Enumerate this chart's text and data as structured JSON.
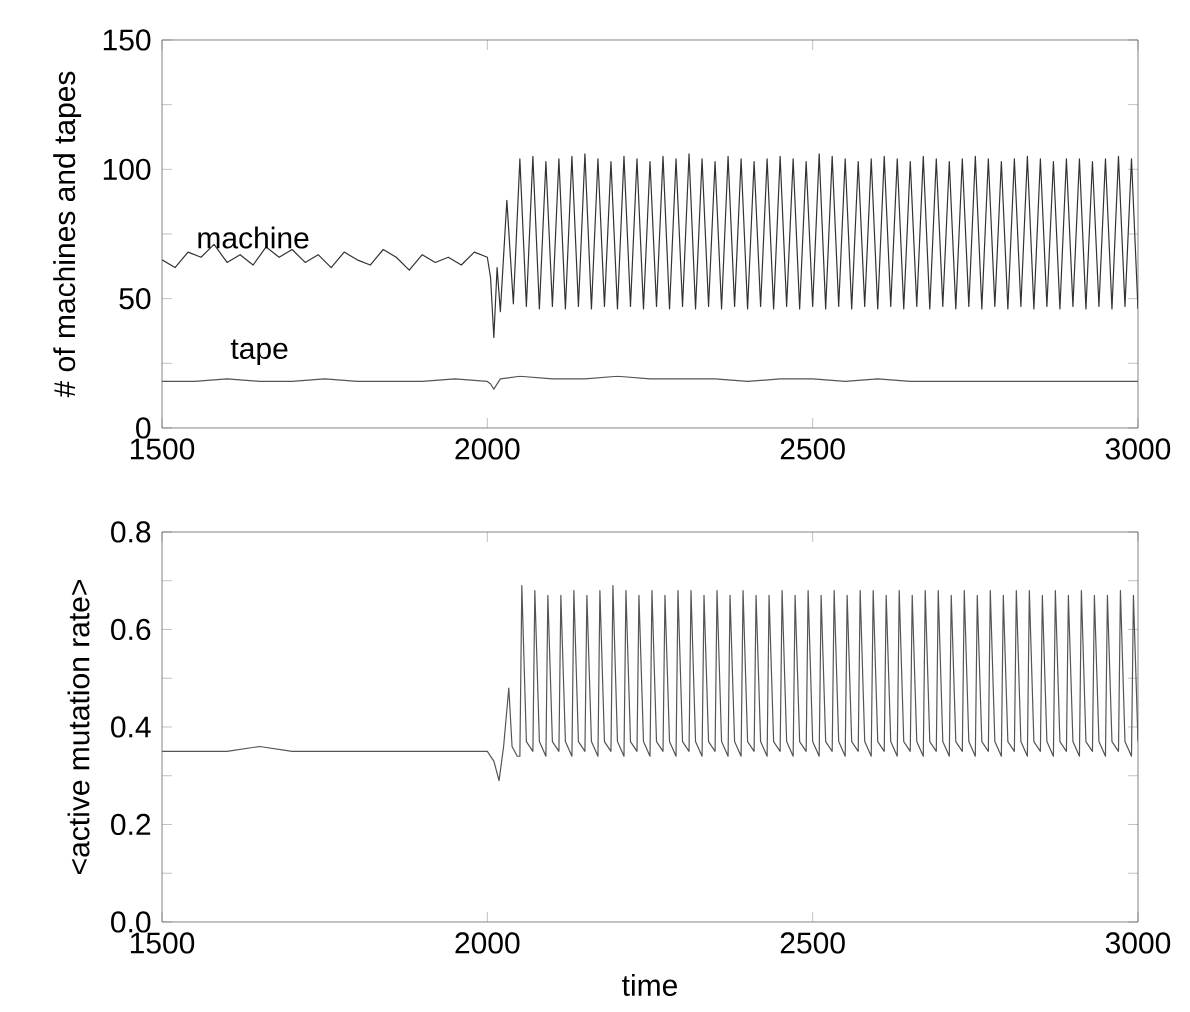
{
  "chart_data": [
    {
      "type": "line",
      "ylabel": "# of machines and tapes",
      "xlim": [
        1500,
        3000
      ],
      "xticks": [
        1500,
        2000,
        2500,
        3000
      ],
      "ylim": [
        0,
        150
      ],
      "yticks": [
        0,
        {
          "value": 25,
          "label": null
        },
        50,
        {
          "value": 75,
          "label": null
        },
        100,
        {
          "value": 125,
          "label": null
        },
        150
      ],
      "series": [
        {
          "name": "machine",
          "color": "#333333",
          "x": [
            1500,
            1520,
            1540,
            1560,
            1580,
            1600,
            1620,
            1640,
            1660,
            1680,
            1700,
            1720,
            1740,
            1760,
            1780,
            1800,
            1820,
            1840,
            1860,
            1880,
            1900,
            1920,
            1940,
            1960,
            1980,
            2000,
            2005,
            2010,
            2015,
            2020,
            2030,
            2040,
            2050,
            2060,
            2070,
            2080,
            2090,
            2100,
            2110,
            2120,
            2130,
            2140,
            2150,
            2160,
            2170,
            2180,
            2190,
            2200,
            2210,
            2220,
            2230,
            2240,
            2250,
            2260,
            2270,
            2280,
            2290,
            2300,
            2310,
            2320,
            2330,
            2340,
            2350,
            2360,
            2370,
            2380,
            2390,
            2400,
            2410,
            2420,
            2430,
            2440,
            2450,
            2460,
            2470,
            2480,
            2490,
            2500,
            2510,
            2520,
            2530,
            2540,
            2550,
            2560,
            2570,
            2580,
            2590,
            2600,
            2610,
            2620,
            2630,
            2640,
            2650,
            2660,
            2670,
            2680,
            2690,
            2700,
            2710,
            2720,
            2730,
            2740,
            2750,
            2760,
            2770,
            2780,
            2790,
            2800,
            2810,
            2820,
            2830,
            2840,
            2850,
            2860,
            2870,
            2880,
            2890,
            2900,
            2910,
            2920,
            2930,
            2940,
            2950,
            2960,
            2970,
            2980,
            2990,
            3000
          ],
          "values": [
            65,
            62,
            68,
            66,
            71,
            64,
            67,
            63,
            70,
            66,
            69,
            64,
            67,
            62,
            68,
            65,
            63,
            69,
            66,
            61,
            67,
            64,
            66,
            63,
            68,
            66,
            58,
            35,
            62,
            45,
            88,
            48,
            104,
            47,
            105,
            46,
            103,
            47,
            104,
            46,
            105,
            47,
            106,
            46,
            104,
            47,
            103,
            46,
            105,
            47,
            104,
            46,
            103,
            47,
            105,
            46,
            104,
            47,
            106,
            46,
            104,
            47,
            103,
            46,
            105,
            47,
            104,
            46,
            103,
            47,
            104,
            46,
            105,
            47,
            104,
            46,
            103,
            47,
            106,
            46,
            105,
            47,
            104,
            46,
            103,
            47,
            104,
            46,
            105,
            47,
            104,
            46,
            103,
            47,
            105,
            46,
            104,
            47,
            103,
            46,
            104,
            47,
            105,
            46,
            104,
            47,
            103,
            46,
            104,
            47,
            105,
            46,
            104,
            47,
            103,
            46,
            104,
            47,
            104,
            46,
            103,
            47,
            104,
            46,
            105,
            47,
            104,
            46
          ]
        },
        {
          "name": "tape",
          "color": "#555555",
          "x": [
            1500,
            1550,
            1600,
            1650,
            1700,
            1750,
            1800,
            1850,
            1900,
            1950,
            2000,
            2005,
            2010,
            2020,
            2050,
            2100,
            2150,
            2200,
            2250,
            2300,
            2350,
            2400,
            2450,
            2500,
            2550,
            2600,
            2650,
            2700,
            2750,
            2800,
            2850,
            2900,
            2950,
            3000
          ],
          "values": [
            18,
            18,
            19,
            18,
            18,
            19,
            18,
            18,
            18,
            19,
            18,
            17,
            15,
            19,
            20,
            19,
            19,
            20,
            19,
            19,
            19,
            18,
            19,
            19,
            18,
            19,
            18,
            18,
            18,
            18,
            18,
            18,
            18,
            18
          ]
        }
      ]
    },
    {
      "type": "line",
      "xlabel": "time",
      "ylabel": "<active mutation rate>",
      "xlim": [
        1500,
        3000
      ],
      "xticks": [
        1500,
        2000,
        2500,
        3000
      ],
      "ylim": [
        0,
        0.8
      ],
      "yticks": [
        {
          "value": 0,
          "label": "0.0"
        },
        {
          "value": 0.1,
          "label": null
        },
        0.2,
        {
          "value": 0.3,
          "label": null
        },
        0.4,
        {
          "value": 0.5,
          "label": null
        },
        0.6,
        {
          "value": 0.7,
          "label": null
        },
        0.8
      ],
      "series": [
        {
          "color": "#555555",
          "x": [
            1500,
            1550,
            1600,
            1650,
            1700,
            1750,
            1800,
            1850,
            1900,
            1950,
            2000,
            2010,
            2018,
            2025,
            2033,
            2038,
            2046,
            2050,
            2053,
            2060,
            2070,
            2073,
            2080,
            2090,
            2093,
            2100,
            2110,
            2113,
            2120,
            2130,
            2133,
            2140,
            2150,
            2153,
            2160,
            2170,
            2173,
            2180,
            2190,
            2193,
            2200,
            2210,
            2213,
            2220,
            2230,
            2233,
            2240,
            2250,
            2253,
            2260,
            2270,
            2273,
            2280,
            2290,
            2293,
            2300,
            2310,
            2313,
            2320,
            2330,
            2333,
            2340,
            2350,
            2353,
            2360,
            2370,
            2373,
            2380,
            2390,
            2393,
            2400,
            2410,
            2413,
            2420,
            2430,
            2433,
            2440,
            2450,
            2453,
            2460,
            2470,
            2473,
            2480,
            2490,
            2493,
            2500,
            2510,
            2513,
            2520,
            2530,
            2533,
            2540,
            2550,
            2553,
            2560,
            2570,
            2573,
            2580,
            2590,
            2593,
            2600,
            2610,
            2613,
            2620,
            2630,
            2633,
            2640,
            2650,
            2653,
            2660,
            2670,
            2673,
            2680,
            2690,
            2693,
            2700,
            2710,
            2713,
            2720,
            2730,
            2733,
            2740,
            2750,
            2753,
            2760,
            2770,
            2773,
            2780,
            2790,
            2793,
            2800,
            2810,
            2813,
            2820,
            2830,
            2833,
            2840,
            2850,
            2853,
            2860,
            2870,
            2873,
            2880,
            2890,
            2893,
            2900,
            2910,
            2913,
            2920,
            2930,
            2933,
            2940,
            2950,
            2953,
            2960,
            2970,
            2973,
            2980,
            2990,
            2993,
            3000
          ],
          "values": [
            0.35,
            0.35,
            0.35,
            0.36,
            0.35,
            0.35,
            0.35,
            0.35,
            0.35,
            0.35,
            0.35,
            0.33,
            0.29,
            0.36,
            0.48,
            0.36,
            0.34,
            0.34,
            0.69,
            0.37,
            0.35,
            0.68,
            0.37,
            0.34,
            0.67,
            0.37,
            0.35,
            0.67,
            0.37,
            0.34,
            0.68,
            0.37,
            0.35,
            0.67,
            0.37,
            0.34,
            0.68,
            0.37,
            0.35,
            0.69,
            0.37,
            0.34,
            0.68,
            0.37,
            0.35,
            0.67,
            0.37,
            0.34,
            0.68,
            0.37,
            0.35,
            0.67,
            0.37,
            0.34,
            0.68,
            0.37,
            0.35,
            0.68,
            0.37,
            0.34,
            0.67,
            0.37,
            0.35,
            0.68,
            0.37,
            0.34,
            0.67,
            0.37,
            0.34,
            0.68,
            0.37,
            0.35,
            0.67,
            0.37,
            0.34,
            0.67,
            0.37,
            0.35,
            0.68,
            0.37,
            0.34,
            0.67,
            0.37,
            0.35,
            0.68,
            0.37,
            0.34,
            0.67,
            0.37,
            0.35,
            0.68,
            0.37,
            0.34,
            0.67,
            0.37,
            0.35,
            0.68,
            0.37,
            0.34,
            0.68,
            0.37,
            0.35,
            0.67,
            0.37,
            0.34,
            0.68,
            0.37,
            0.35,
            0.67,
            0.37,
            0.34,
            0.68,
            0.37,
            0.35,
            0.68,
            0.37,
            0.34,
            0.67,
            0.37,
            0.35,
            0.68,
            0.37,
            0.34,
            0.67,
            0.37,
            0.35,
            0.68,
            0.37,
            0.34,
            0.67,
            0.37,
            0.35,
            0.68,
            0.37,
            0.34,
            0.68,
            0.37,
            0.35,
            0.67,
            0.37,
            0.34,
            0.68,
            0.37,
            0.35,
            0.67,
            0.37,
            0.34,
            0.68,
            0.37,
            0.35,
            0.67,
            0.37,
            0.34,
            0.67,
            0.37,
            0.35,
            0.68,
            0.37,
            0.34,
            0.67,
            0.37
          ]
        }
      ]
    }
  ]
}
